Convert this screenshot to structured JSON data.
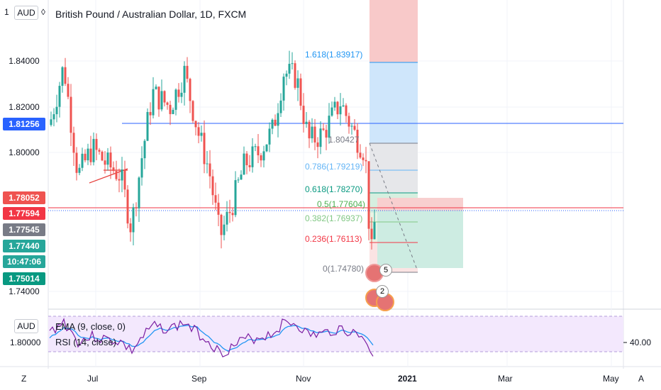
{
  "header": {
    "title": "British Pound / Australian Dollar, 1D, FXCM"
  },
  "price_axis": {
    "unit": "AUD",
    "unit_prefix": "1",
    "ticks": [
      "1.84000",
      "1.82000",
      "1.80000",
      "1.74000"
    ],
    "current_value": "1.81256",
    "badges": [
      {
        "label": "1.78052",
        "color": "#ef5350"
      },
      {
        "label": "1.77594",
        "color": "#f23645"
      },
      {
        "label": "1.77545",
        "color": "#787b86"
      },
      {
        "label": "1.77440",
        "color": "#26a69a"
      },
      {
        "label": "10:47:06",
        "color": "#26a69a"
      },
      {
        "label": "1.75014",
        "color": "#089981"
      }
    ],
    "current_color": "#2962ff"
  },
  "fib": {
    "levels": [
      {
        "label": "1.618(1.83917)",
        "color": "#2196f3"
      },
      {
        "label": "1.80427",
        "color": "#787b86"
      },
      {
        "label": "0.786(1.79219)",
        "color": "#64b5f6"
      },
      {
        "label": "0.618(1.78270)",
        "color": "#089981"
      },
      {
        "label": "0.5(1.77604)",
        "color": "#4caf50"
      },
      {
        "label": "0.382(1.76937)",
        "color": "#81c784"
      },
      {
        "label": "0.236(1.76113)",
        "color": "#f23645"
      },
      {
        "label": "0(1.74780)",
        "color": "#787b86"
      }
    ]
  },
  "events": [
    "5",
    "2"
  ],
  "indicators": {
    "unit": "AUD",
    "price": "1.80000",
    "ema": "EMA (9, close, 0)",
    "rsi": "RSI (14, close)",
    "rsi_level": "40.00"
  },
  "time_axis": {
    "labels": [
      "Jul",
      "Sep",
      "Nov",
      "2021",
      "Mar",
      "May"
    ]
  },
  "corners": {
    "left": "Z",
    "right": "A"
  }
}
